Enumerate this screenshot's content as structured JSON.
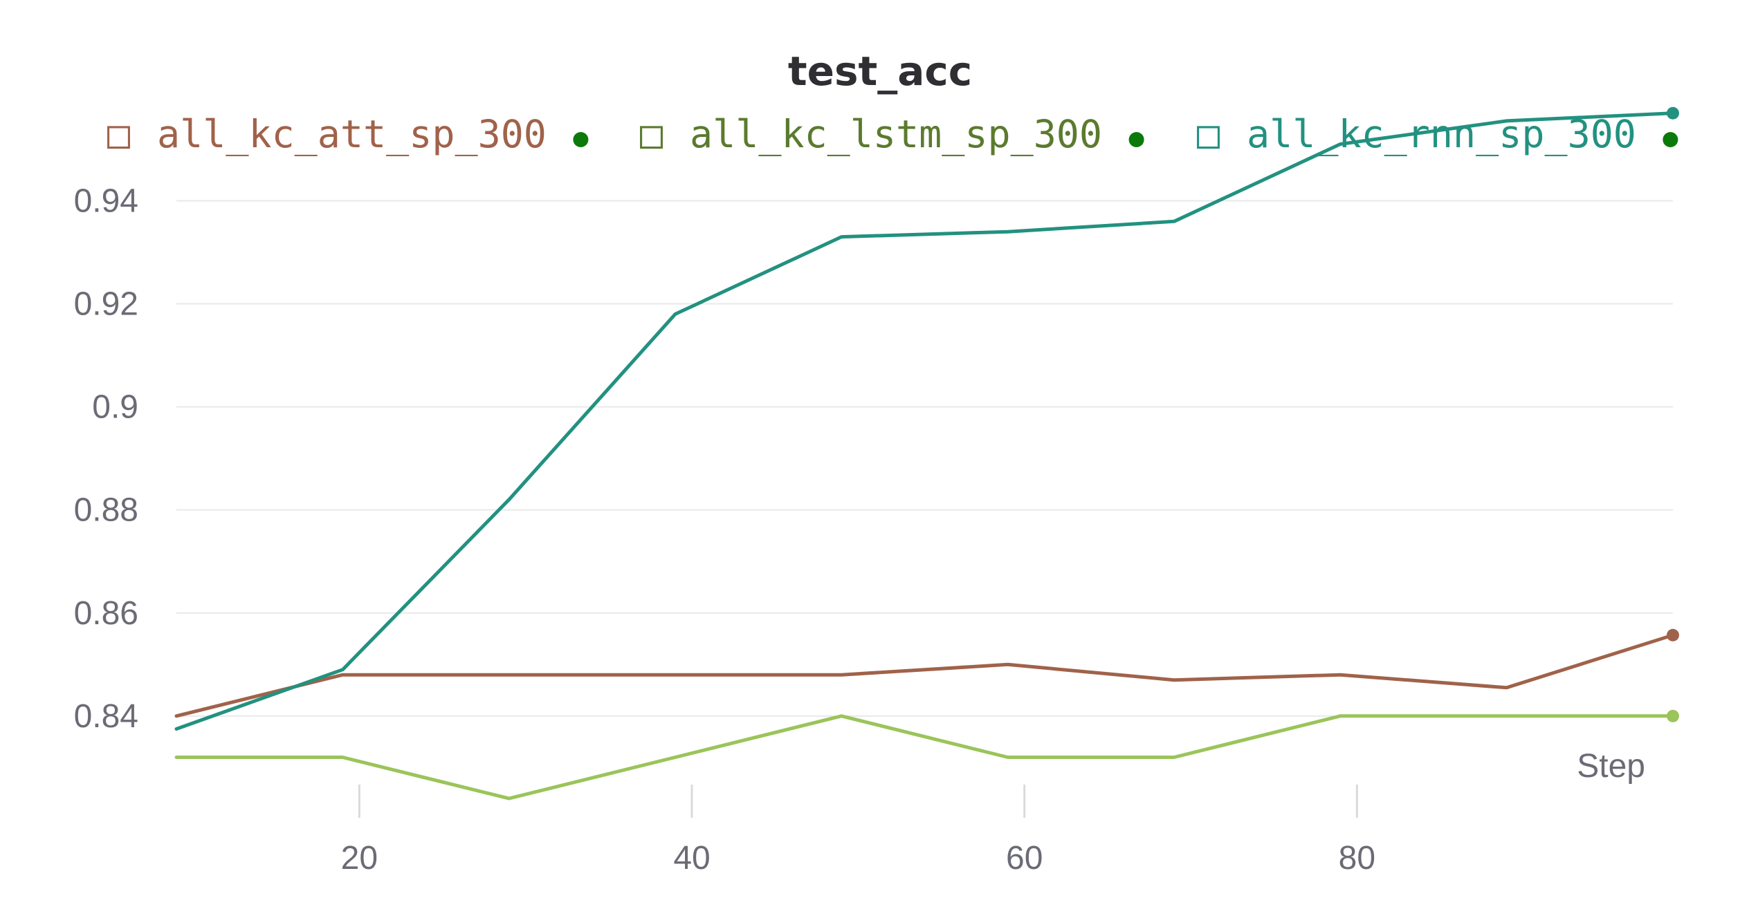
{
  "chart_data": {
    "type": "line",
    "title": "test_acc",
    "xlabel": "Step",
    "ylabel": "",
    "xlim": [
      9,
      99
    ],
    "ylim": [
      0.822,
      0.9575
    ],
    "yticks": [
      0.84,
      0.86,
      0.88,
      0.9,
      0.92,
      0.94
    ],
    "ytick_labels": [
      "0.84",
      "0.86",
      "0.88",
      "0.9",
      "0.92",
      "0.94"
    ],
    "xticks": [
      20,
      40,
      60,
      80
    ],
    "xtick_labels": [
      "20",
      "40",
      "60",
      "80"
    ],
    "grid": true,
    "legend_position": "top",
    "x": [
      9,
      19,
      29,
      39,
      49,
      59,
      69,
      79,
      89,
      99
    ],
    "series": [
      {
        "name": "all_kc_att_sp_300",
        "color": "#a0624a",
        "text_color": "#a0624a",
        "values": [
          0.84,
          0.848,
          0.848,
          0.848,
          0.848,
          0.85,
          0.847,
          0.848,
          0.8455,
          0.8557
        ]
      },
      {
        "name": "all_kc_lstm_sp_300",
        "color": "#9bc45a",
        "text_color": "#5b7a2e",
        "values": [
          0.832,
          0.832,
          0.824,
          0.832,
          0.84,
          0.832,
          0.832,
          0.84,
          0.84,
          0.84
        ]
      },
      {
        "name": "all_kc_rnn_sp_300",
        "color": "#229180",
        "text_color": "#229180",
        "values": [
          0.8375,
          0.849,
          0.882,
          0.918,
          0.933,
          0.934,
          0.936,
          0.951,
          0.9555,
          0.957
        ]
      }
    ],
    "legend_dot_color": "#0b7a0b",
    "legend_marker": "□"
  }
}
